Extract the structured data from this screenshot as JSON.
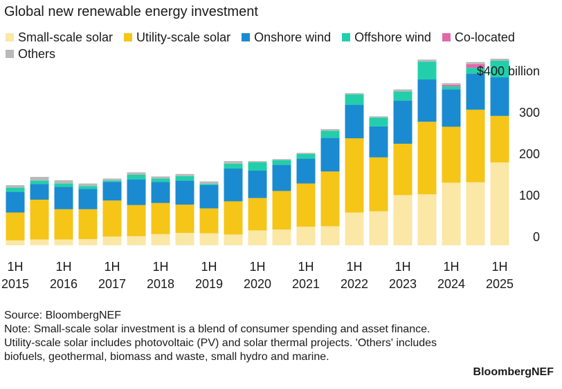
{
  "title": "Global new renewable energy investment",
  "source": "Source: BloombergNEF",
  "note": "Note: Small-scale solar investment is a blend of consumer spending and asset finance. Utility-scale solar includes photovoltaic (PV) and solar thermal projects. 'Others' includes biofuels, geothermal, biomass and waste, small hydro and marine.",
  "brand": "BloombergNEF",
  "chart_data": {
    "type": "bar",
    "stacked": true,
    "title": "Global new renewable energy investment",
    "unit_label": "$400 billion",
    "ylim": [
      0,
      400
    ],
    "yticks": [
      0,
      100,
      200,
      300,
      400
    ],
    "ytick_labels": [
      "0",
      "100",
      "200",
      "300",
      "$400 billion"
    ],
    "y_axis_position": "right",
    "grid": false,
    "legend_position": "top-left",
    "categories": [
      "1H 2015",
      "2H 2015",
      "1H 2016",
      "2H 2016",
      "1H 2017",
      "2H 2017",
      "1H 2018",
      "2H 2018",
      "1H 2019",
      "2H 2019",
      "1H 2020",
      "2H 2020",
      "1H 2021",
      "2H 2021",
      "1H 2022",
      "2H 2022",
      "1H 2023",
      "2H 2023",
      "1H 2024",
      "2H 2024",
      "1H 2025"
    ],
    "x_tick_labels": [
      {
        "index": 0,
        "line1": "1H",
        "line2": "2015"
      },
      {
        "index": 2,
        "line1": "1H",
        "line2": "2016"
      },
      {
        "index": 4,
        "line1": "1H",
        "line2": "2017"
      },
      {
        "index": 6,
        "line1": "1H",
        "line2": "2018"
      },
      {
        "index": 8,
        "line1": "1H",
        "line2": "2019"
      },
      {
        "index": 10,
        "line1": "1H",
        "line2": "2020"
      },
      {
        "index": 12,
        "line1": "1H",
        "line2": "2021"
      },
      {
        "index": 14,
        "line1": "1H",
        "line2": "2022"
      },
      {
        "index": 16,
        "line1": "1H",
        "line2": "2023"
      },
      {
        "index": 18,
        "line1": "1H",
        "line2": "2024"
      },
      {
        "index": 20,
        "line1": "1H",
        "line2": "2025"
      }
    ],
    "series": [
      {
        "name": "Small-scale solar",
        "color": "#fbe7a6",
        "values": [
          12,
          14,
          14,
          15,
          21,
          22,
          27,
          30,
          29,
          26,
          36,
          38,
          45,
          46,
          79,
          82,
          121,
          123,
          151,
          152,
          200
        ]
      },
      {
        "name": "Utility-scale solar",
        "color": "#f5c518",
        "values": [
          67,
          96,
          73,
          72,
          87,
          75,
          75,
          68,
          60,
          80,
          78,
          93,
          104,
          132,
          179,
          130,
          124,
          175,
          135,
          175,
          112
        ]
      },
      {
        "name": "Onshore wind",
        "color": "#1a8bd0",
        "values": [
          50,
          38,
          54,
          49,
          45,
          62,
          51,
          58,
          56,
          79,
          66,
          63,
          60,
          81,
          81,
          75,
          104,
          102,
          90,
          87,
          93
        ]
      },
      {
        "name": "Offshore wind",
        "color": "#22cfaa",
        "values": [
          10,
          8,
          8,
          7,
          3,
          11,
          8,
          11,
          3,
          12,
          20,
          11,
          11,
          17,
          25,
          21,
          22,
          43,
          7,
          14,
          40
        ]
      },
      {
        "name": "Co-located",
        "color": "#e06aa8",
        "values": [
          0,
          0,
          0,
          0,
          0,
          0,
          0,
          0,
          0,
          0,
          0,
          0,
          0,
          0,
          0,
          0,
          0,
          0,
          4,
          9,
          0
        ]
      },
      {
        "name": "Others",
        "color": "#b9b9b9",
        "values": [
          6,
          9,
          8,
          6,
          5,
          6,
          5,
          5,
          6,
          6,
          3,
          3,
          3,
          4,
          3,
          3,
          5,
          5,
          4,
          5,
          5
        ]
      }
    ]
  }
}
